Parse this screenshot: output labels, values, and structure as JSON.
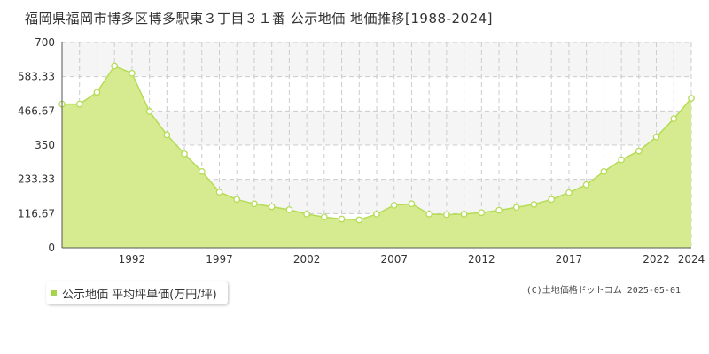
{
  "title": "福岡県福岡市博多区博多駅東３丁目３１番 公示地価 地価推移[1988-2024]",
  "legend": {
    "label": "公示地価 平均坪単価(万円/坪)"
  },
  "credit": "(C)土地価格ドットコム 2025-05-01",
  "colors": {
    "fill": "#d6eb8f",
    "line": "#b5dc55",
    "marker_fill": "#ffffff",
    "marker_stroke": "#b5dc55",
    "band": "#f5f5f5",
    "grid": "#cccccc"
  },
  "chart_data": {
    "type": "area",
    "ylim": [
      0,
      700
    ],
    "yticks": [
      0,
      116.67,
      233.33,
      350,
      466.67,
      583.33,
      700
    ],
    "ytick_labels": [
      "0",
      "116.67",
      "233.33",
      "350",
      "466.67",
      "583.33",
      "700"
    ],
    "xtick_labels": [
      "1992",
      "1997",
      "2002",
      "2007",
      "2012",
      "2017",
      "2022",
      "2024"
    ],
    "xticks": [
      1992,
      1997,
      2002,
      2007,
      2012,
      2017,
      2022,
      2024
    ],
    "xlim": [
      1988,
      2024
    ],
    "grid": true,
    "series": [
      {
        "name": "公示地価 平均坪単価(万円/坪)",
        "x": [
          1988,
          1989,
          1990,
          1991,
          1992,
          1993,
          1994,
          1995,
          1996,
          1997,
          1998,
          1999,
          2000,
          2001,
          2002,
          2003,
          2004,
          2005,
          2006,
          2007,
          2008,
          2009,
          2010,
          2011,
          2012,
          2013,
          2014,
          2015,
          2016,
          2017,
          2018,
          2019,
          2020,
          2021,
          2022,
          2023,
          2024
        ],
        "values": [
          490,
          490,
          530,
          620,
          595,
          465,
          385,
          320,
          260,
          190,
          165,
          150,
          140,
          130,
          115,
          105,
          98,
          95,
          115,
          145,
          150,
          115,
          113,
          115,
          120,
          128,
          138,
          148,
          165,
          188,
          215,
          260,
          300,
          330,
          378,
          440,
          510
        ]
      }
    ]
  }
}
